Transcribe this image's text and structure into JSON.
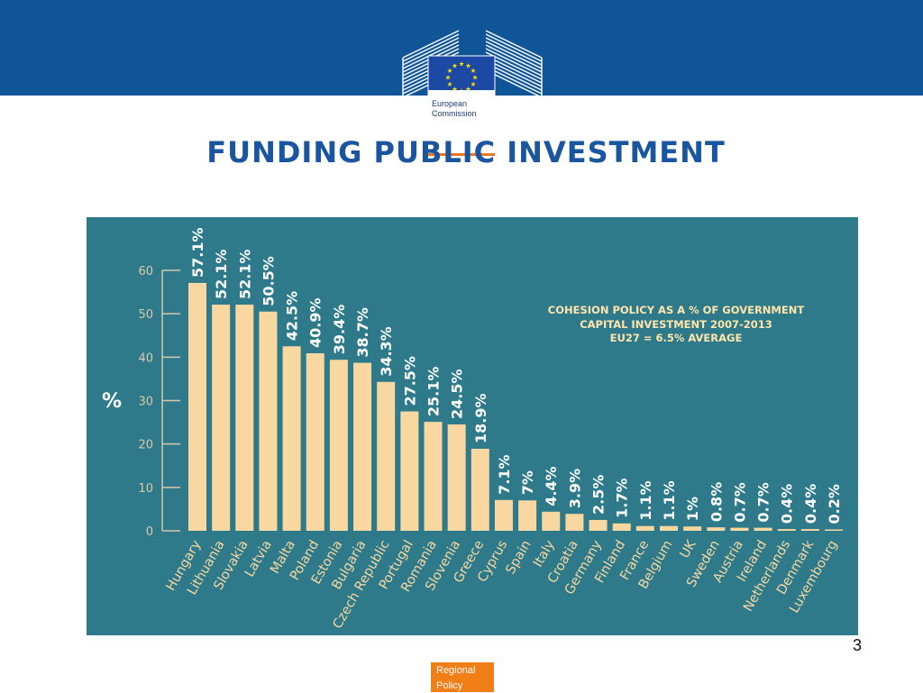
{
  "slide": {
    "title": "FUNDING PUBLIC INVESTMENT",
    "page_number": "3",
    "footer_label_1": "Regional",
    "footer_label_2": "Policy"
  },
  "logo": {
    "line1": "European",
    "line2": "Commission"
  },
  "colors": {
    "header_band": "#105597",
    "chart_background": "#2e7a8a",
    "bar": "#f8d7a0",
    "title": "#1a56a0",
    "footer_tab": "#f07f17",
    "note_text": "#ffe5ab"
  },
  "chart_data": {
    "type": "bar",
    "annotation": [
      "COHESION POLICY AS A % OF GOVERNMENT",
      "CAPITAL INVESTMENT 2007-2013",
      "EU27 = 6.5% AVERAGE"
    ],
    "ylabel": "%",
    "ylim": [
      0,
      60
    ],
    "yticks": [
      0,
      10,
      20,
      30,
      40,
      50,
      60
    ],
    "grid": false,
    "categories": [
      "Hungary",
      "Lithuania",
      "Slovakia",
      "Latvia",
      "Malta",
      "Poland",
      "Estonia",
      "Bulgaria",
      "Czech Republic",
      "Portugal",
      "Romania",
      "Slovenia",
      "Greece",
      "Cyprus",
      "Spain",
      "Italy",
      "Croatia",
      "Germany",
      "Finland",
      "France",
      "Belgium",
      "UK",
      "Sweden",
      "Austria",
      "Ireland",
      "Netherlands",
      "Denmark",
      "Luxembourg"
    ],
    "values": [
      57.1,
      52.1,
      52.1,
      50.5,
      42.5,
      40.9,
      39.4,
      38.7,
      34.3,
      27.5,
      25.1,
      24.5,
      18.9,
      7.1,
      7,
      4.4,
      3.9,
      2.5,
      1.7,
      1.1,
      1.1,
      1,
      0.8,
      0.7,
      0.7,
      0.4,
      0.4,
      0.2
    ],
    "value_labels": [
      "57.1%",
      "52.1%",
      "52.1%",
      "50.5%",
      "42.5%",
      "40.9%",
      "39.4%",
      "38.7%",
      "34.3%",
      "27.5%",
      "25.1%",
      "24.5%",
      "18.9%",
      "7.1%",
      "7%",
      "4.4%",
      "3.9%",
      "2.5%",
      "1.7%",
      "1.1%",
      "1.1%",
      "1%",
      "0.8%",
      "0.7%",
      "0.7%",
      "0.4%",
      "0.4%",
      "0.2%"
    ]
  }
}
